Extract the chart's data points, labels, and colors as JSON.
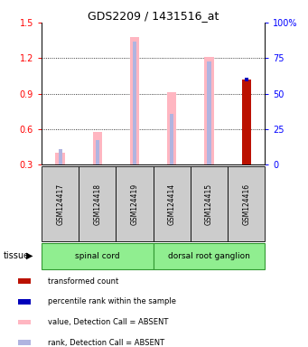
{
  "title": "GDS2209 / 1431516_at",
  "samples": [
    "GSM124417",
    "GSM124418",
    "GSM124419",
    "GSM124414",
    "GSM124415",
    "GSM124416"
  ],
  "ylim_left": [
    0.3,
    1.5
  ],
  "ylim_right": [
    0,
    100
  ],
  "yticks_left": [
    0.3,
    0.6,
    0.9,
    1.2,
    1.5
  ],
  "yticks_right": [
    0,
    25,
    50,
    75,
    100
  ],
  "value_absent": [
    0.4,
    0.575,
    1.38,
    0.91,
    1.21,
    null
  ],
  "rank_absent": [
    0.43,
    0.51,
    1.34,
    0.73,
    1.17,
    null
  ],
  "value_present": [
    null,
    null,
    null,
    null,
    null,
    1.02
  ],
  "rank_present": [
    null,
    null,
    null,
    null,
    null,
    1.0
  ],
  "pink_color": "#ffb6c1",
  "lavender_color": "#b0b4e0",
  "red_color": "#bb1100",
  "blue_color": "#0000bb",
  "tissue_groups": [
    {
      "label": "spinal cord",
      "start": 0,
      "end": 3
    },
    {
      "label": "dorsal root ganglion",
      "start": 3,
      "end": 6
    }
  ],
  "tissue_color": "#90ee90",
  "tissue_border_color": "#339933",
  "sample_box_color": "#cccccc",
  "legend_items": [
    {
      "color": "#bb1100",
      "label": "transformed count"
    },
    {
      "color": "#0000bb",
      "label": "percentile rank within the sample"
    },
    {
      "color": "#ffb6c1",
      "label": "value, Detection Call = ABSENT"
    },
    {
      "color": "#b0b4e0",
      "label": "rank, Detection Call = ABSENT"
    }
  ],
  "bar_width": 0.25,
  "rank_bar_width": 0.1
}
